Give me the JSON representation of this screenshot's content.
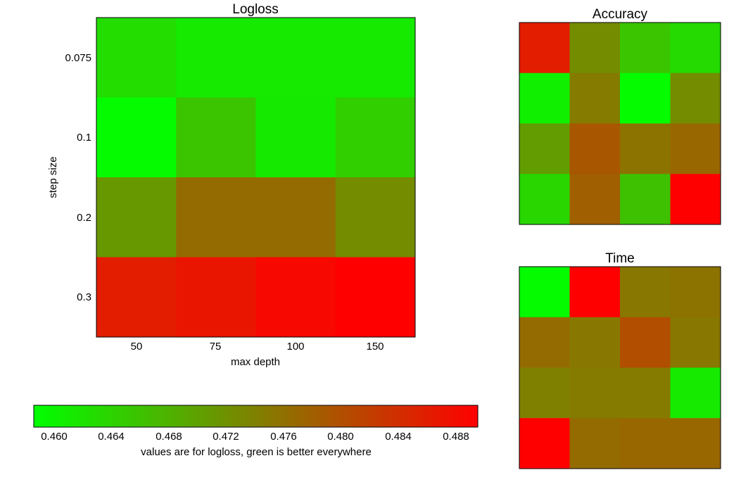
{
  "chart_data": [
    {
      "type": "heatmap",
      "title": "Logloss",
      "xlabel": "max depth",
      "ylabel": "step size",
      "x_categories": [
        "50",
        "75",
        "100",
        "150"
      ],
      "y_categories": [
        "0.075",
        "0.1",
        "0.2",
        "0.3"
      ],
      "values": [
        [
          0.4628,
          0.461,
          0.461,
          0.461
        ],
        [
          0.459,
          0.4655,
          0.4612,
          0.4645
        ],
        [
          0.471,
          0.4765,
          0.4765,
          0.4725
        ],
        [
          0.486,
          0.487,
          0.4885,
          0.4895
        ]
      ]
    },
    {
      "type": "heatmap",
      "title": "Accuracy",
      "values": [
        [
          0.486,
          0.4725,
          0.4655,
          0.463
        ],
        [
          0.4605,
          0.4745,
          0.459,
          0.4725
        ],
        [
          0.4705,
          0.479,
          0.4755,
          0.477
        ],
        [
          0.4635,
          0.478,
          0.466,
          0.4895
        ]
      ]
    },
    {
      "type": "heatmap",
      "title": "Time",
      "values": [
        [
          0.459,
          0.4895,
          0.475,
          0.4755
        ],
        [
          0.4765,
          0.475,
          0.48,
          0.475
        ],
        [
          0.474,
          0.4745,
          0.4745,
          0.461
        ],
        [
          0.4895,
          0.4765,
          0.477,
          0.477
        ]
      ]
    },
    {
      "type": "colorbar",
      "label": "values are for logloss, green is better everywhere",
      "range": [
        0.4585,
        0.4895
      ],
      "ticks": [
        "0.460",
        "0.464",
        "0.468",
        "0.472",
        "0.476",
        "0.480",
        "0.484",
        "0.488"
      ],
      "colors": {
        "low": "#00ff00",
        "high": "#ff0000"
      }
    }
  ]
}
